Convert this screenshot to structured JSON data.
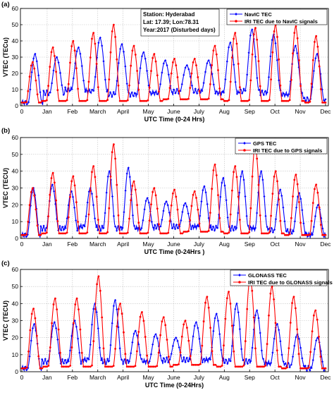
{
  "colors": {
    "observed": "#0000ff",
    "model": "#ff0000",
    "axis": "#000000",
    "grid": "#bfbfbf"
  },
  "chart_data": [
    {
      "type": "line",
      "panel_label": "(a)",
      "ylabel": "VTEC (TECu)",
      "xlabel": "UTC Time (0-24 Hrs)",
      "ylim": [
        0,
        60
      ],
      "yticks": [
        0,
        10,
        20,
        30,
        40,
        50,
        60
      ],
      "xticks": [
        "0",
        "Jan",
        "Feb",
        "March",
        "April",
        "May",
        "June",
        "July",
        "Aug",
        "Sep",
        "Oct",
        "Nov",
        "Dec"
      ],
      "grid": true,
      "legend": "top-right",
      "info_box": [
        "Station: Hyderabad",
        "Lat: 17.39; Lon:78.31",
        "Year:2017 (Disturbed days)"
      ],
      "series": [
        {
          "name": "NavIC TEC",
          "peaks": [
            32,
            30,
            36,
            42,
            38,
            33,
            28,
            25,
            28,
            39,
            47,
            44,
            37,
            32
          ],
          "mins": [
            2,
            8,
            10,
            9,
            7,
            7,
            8,
            9,
            9,
            8,
            9,
            8,
            7,
            4
          ]
        },
        {
          "name": "IRI TEC due to NavIC signals",
          "peaks": [
            27,
            36,
            40,
            45,
            50,
            37,
            32,
            29,
            29,
            37,
            45,
            48,
            50,
            49,
            43
          ],
          "mins": [
            2,
            3,
            3,
            3,
            3,
            3,
            3,
            4,
            4,
            4,
            3,
            3,
            3,
            3,
            2
          ]
        }
      ]
    },
    {
      "type": "line",
      "panel_label": "(b)",
      "ylabel": "VTEC (TECU)",
      "xlabel": "UTC Time (0-24Hrs )",
      "ylim": [
        0,
        60
      ],
      "yticks": [
        0,
        10,
        20,
        30,
        40,
        50,
        60
      ],
      "xticks": [
        "0",
        "Jan",
        "Feb",
        "March",
        "April",
        "May",
        "June",
        "July",
        "Aug",
        "Sep",
        "Oct",
        "Nov",
        "Dec"
      ],
      "grid": true,
      "legend": "top-right",
      "series": [
        {
          "name": "GPS TEC",
          "peaks": [
            30,
            32,
            28,
            30,
            40,
            42,
            24,
            22,
            21,
            31,
            36,
            40,
            40,
            29,
            27,
            20
          ],
          "mins": [
            2,
            6,
            6,
            7,
            6,
            6,
            6,
            7,
            7,
            7,
            6,
            6,
            6,
            5,
            4,
            2
          ]
        },
        {
          "name": "IRI TEC due to GPS signals",
          "peaks": [
            30,
            39,
            37,
            43,
            56,
            34,
            30,
            29,
            28,
            44,
            43,
            56,
            40,
            38,
            32
          ],
          "mins": [
            2,
            3,
            3,
            3,
            3,
            3,
            3,
            3,
            4,
            4,
            3,
            3,
            3,
            2,
            2
          ]
        }
      ]
    },
    {
      "type": "line",
      "panel_label": "(c)",
      "ylabel": "VTEC (TECU)",
      "xlabel": "UTC Time (0-24Hrs)",
      "ylim": [
        0,
        60
      ],
      "yticks": [
        0,
        10,
        20,
        30,
        40,
        50,
        60
      ],
      "xticks": [
        "0",
        "Jan",
        "Feb",
        "March",
        "April",
        "May",
        "June",
        "July",
        "Aug",
        "Sep",
        "Oct",
        "Nov",
        "Dec"
      ],
      "grid": true,
      "legend": "top-right",
      "series": [
        {
          "name": "GLONASS TEC",
          "peaks": [
            28,
            29,
            30,
            40,
            42,
            24,
            22,
            20,
            29,
            34,
            40,
            36,
            28,
            22,
            20
          ],
          "mins": [
            2,
            6,
            6,
            7,
            6,
            6,
            6,
            7,
            7,
            7,
            6,
            6,
            5,
            4,
            2
          ]
        },
        {
          "name": "IRI TEC due to GLONASS signals",
          "peaks": [
            37,
            43,
            43,
            56,
            40,
            35,
            32,
            30,
            44,
            47,
            56,
            50,
            44,
            36
          ],
          "mins": [
            2,
            3,
            3,
            3,
            3,
            3,
            3,
            4,
            4,
            3,
            3,
            3,
            2,
            2
          ]
        }
      ]
    }
  ]
}
